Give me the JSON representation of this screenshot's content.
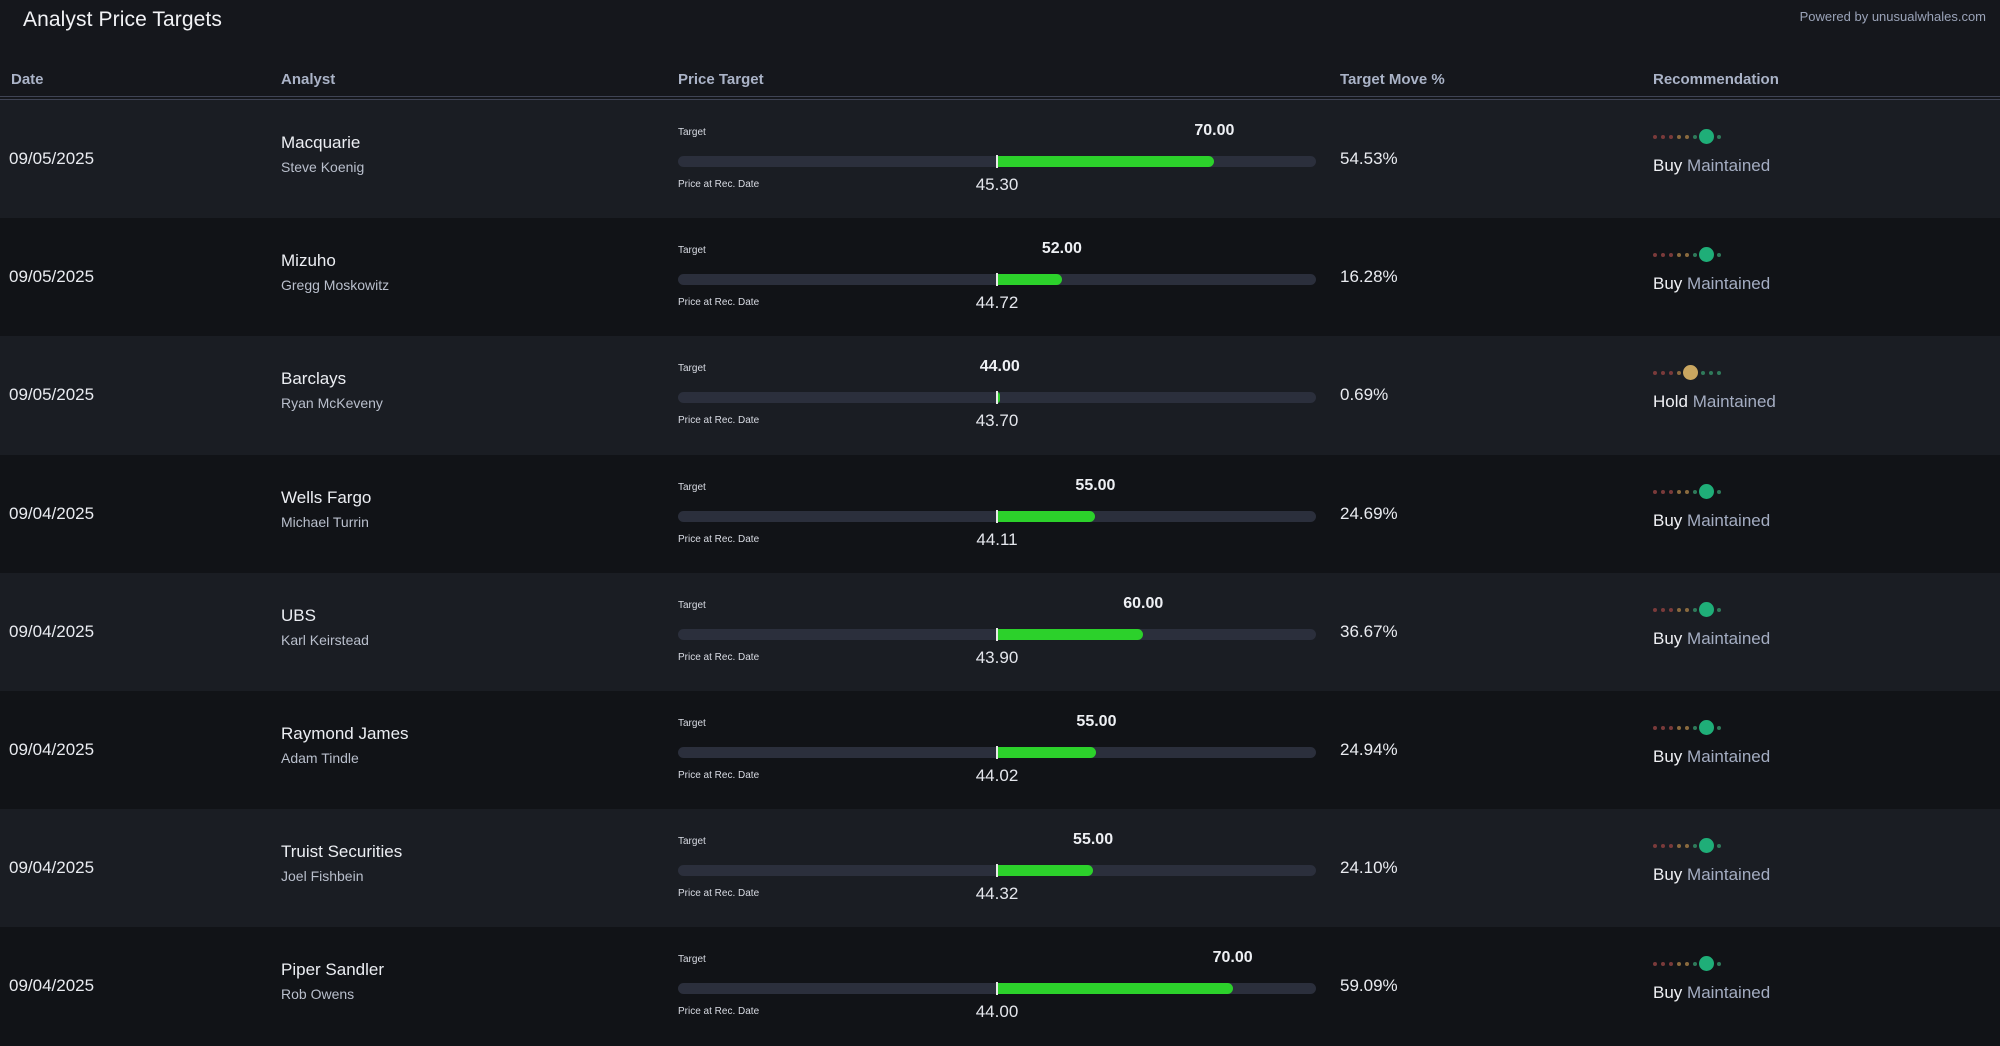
{
  "header": {
    "title": "Analyst Price Targets",
    "powered_by": "Powered by unusualwhales.com"
  },
  "columns": {
    "date": "Date",
    "analyst": "Analyst",
    "price_target": "Price Target",
    "target_move": "Target Move %",
    "recommendation": "Recommendation"
  },
  "labels": {
    "target": "Target",
    "price_at_rec": "Price at Rec. Date"
  },
  "colors": {
    "bar_fill": "#2cd12b",
    "track": "#2b2f3c",
    "buy_dot": "#1fae78",
    "hold_dot": "#c9a660",
    "sell_dot": "#7a3a3a"
  },
  "rows": [
    {
      "date": "09/05/2025",
      "firm": "Macquarie",
      "analyst": "Steve Koenig",
      "target": "70.00",
      "price": "45.30",
      "move": "54.53%",
      "rating": "Buy",
      "action": "Maintained",
      "rating_level": 6
    },
    {
      "date": "09/05/2025",
      "firm": "Mizuho",
      "analyst": "Gregg Moskowitz",
      "target": "52.00",
      "price": "44.72",
      "move": "16.28%",
      "rating": "Buy",
      "action": "Maintained",
      "rating_level": 6
    },
    {
      "date": "09/05/2025",
      "firm": "Barclays",
      "analyst": "Ryan McKeveny",
      "target": "44.00",
      "price": "43.70",
      "move": "0.69%",
      "rating": "Hold",
      "action": "Maintained",
      "rating_level": 4
    },
    {
      "date": "09/04/2025",
      "firm": "Wells Fargo",
      "analyst": "Michael Turrin",
      "target": "55.00",
      "price": "44.11",
      "move": "24.69%",
      "rating": "Buy",
      "action": "Maintained",
      "rating_level": 6
    },
    {
      "date": "09/04/2025",
      "firm": "UBS",
      "analyst": "Karl Keirstead",
      "target": "60.00",
      "price": "43.90",
      "move": "36.67%",
      "rating": "Buy",
      "action": "Maintained",
      "rating_level": 6
    },
    {
      "date": "09/04/2025",
      "firm": "Raymond James",
      "analyst": "Adam Tindle",
      "target": "55.00",
      "price": "44.02",
      "move": "24.94%",
      "rating": "Buy",
      "action": "Maintained",
      "rating_level": 6
    },
    {
      "date": "09/04/2025",
      "firm": "Truist Securities",
      "analyst": "Joel Fishbein",
      "target": "55.00",
      "price": "44.32",
      "move": "24.10%",
      "rating": "Buy",
      "action": "Maintained",
      "rating_level": 6
    },
    {
      "date": "09/04/2025",
      "firm": "Piper Sandler",
      "analyst": "Rob Owens",
      "target": "70.00",
      "price": "44.00",
      "move": "59.09%",
      "rating": "Buy",
      "action": "Maintained",
      "rating_level": 6
    }
  ]
}
